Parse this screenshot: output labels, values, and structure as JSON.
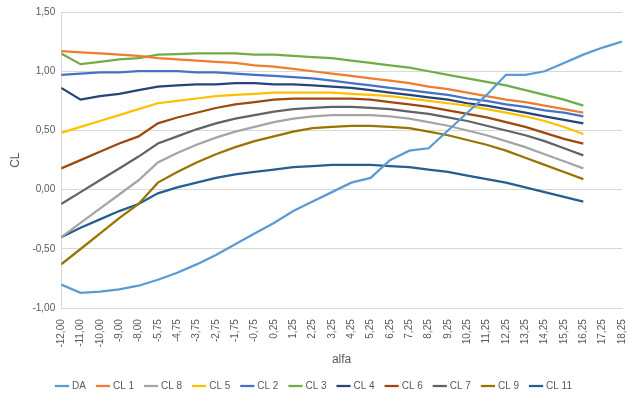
{
  "chart_data": {
    "type": "line",
    "x_label": "alfa",
    "y_label": "CL",
    "categories": [
      "-12,00",
      "-11,00",
      "-10,00",
      "-9,00",
      "-8,00",
      "-5,75",
      "-4,75",
      "-3,75",
      "-2,75",
      "-1,75",
      "-0,75",
      "0,25",
      "1,25",
      "2,25",
      "3,25",
      "4,25",
      "5,25",
      "6,25",
      "7,25",
      "8,25",
      "9,25",
      "10,25",
      "11,25",
      "12,25",
      "13,25",
      "14,25",
      "15,25",
      "16,25",
      "17,25",
      "18,25"
    ],
    "ylim": [
      -1,
      1.5
    ],
    "yticks": [
      {
        "value": -1,
        "label": "-1,00"
      },
      {
        "value": -0.5,
        "label": "-0,50"
      },
      {
        "value": 0,
        "label": "0,00"
      },
      {
        "value": 0.5,
        "label": "0,50"
      },
      {
        "value": 1,
        "label": "1,00"
      },
      {
        "value": 1.5,
        "label": "1,50"
      }
    ],
    "grid": true,
    "legend": "bottom",
    "series": [
      {
        "name": "DA",
        "color": "#5b9bd5",
        "values": [
          -0.8,
          -0.87,
          -0.86,
          -0.84,
          -0.81,
          -0.76,
          -0.7,
          -0.63,
          -0.55,
          -0.46,
          -0.37,
          -0.28,
          -0.18,
          -0.1,
          -0.02,
          0.06,
          0.1,
          0.25,
          0.33,
          0.35,
          0.5,
          0.65,
          0.8,
          0.97,
          0.97,
          1.0,
          1.07,
          1.14,
          1.2,
          1.25
        ]
      },
      {
        "name": "CL 1",
        "color": "#ed7d31",
        "values": [
          1.17,
          1.16,
          1.15,
          1.14,
          1.13,
          1.11,
          1.1,
          1.09,
          1.08,
          1.07,
          1.05,
          1.04,
          1.02,
          1.0,
          0.98,
          0.96,
          0.94,
          0.92,
          0.9,
          0.87,
          0.85,
          0.82,
          0.79,
          0.76,
          0.74,
          0.71,
          0.68,
          0.65,
          null,
          null
        ]
      },
      {
        "name": "CL 8",
        "color": "#a5a5a5",
        "values": [
          -0.4,
          -0.28,
          -0.16,
          -0.04,
          0.08,
          0.23,
          0.31,
          0.38,
          0.44,
          0.49,
          0.53,
          0.57,
          0.6,
          0.62,
          0.63,
          0.63,
          0.63,
          0.62,
          0.6,
          0.57,
          0.54,
          0.5,
          0.46,
          0.41,
          0.36,
          0.3,
          0.24,
          0.18,
          null,
          null
        ]
      },
      {
        "name": "CL 5",
        "color": "#ffc000",
        "values": [
          0.48,
          0.53,
          0.58,
          0.63,
          0.68,
          0.73,
          0.75,
          0.77,
          0.79,
          0.8,
          0.81,
          0.82,
          0.82,
          0.82,
          0.82,
          0.81,
          0.8,
          0.79,
          0.77,
          0.75,
          0.73,
          0.71,
          0.68,
          0.65,
          0.62,
          0.58,
          0.53,
          0.47,
          null,
          null
        ]
      },
      {
        "name": "CL 2",
        "color": "#4472c4",
        "values": [
          0.97,
          0.98,
          0.99,
          0.99,
          1.0,
          1.0,
          1.0,
          0.99,
          0.99,
          0.98,
          0.97,
          0.96,
          0.95,
          0.94,
          0.92,
          0.9,
          0.88,
          0.86,
          0.84,
          0.82,
          0.8,
          0.77,
          0.75,
          0.72,
          0.7,
          0.67,
          0.65,
          0.62,
          null,
          null
        ]
      },
      {
        "name": "CL 3",
        "color": "#70ad47",
        "values": [
          1.15,
          1.06,
          1.08,
          1.1,
          1.11,
          1.14,
          1.145,
          1.15,
          1.15,
          1.15,
          1.14,
          1.14,
          1.13,
          1.12,
          1.11,
          1.09,
          1.07,
          1.05,
          1.03,
          1.0,
          0.97,
          0.94,
          0.91,
          0.88,
          0.84,
          0.8,
          0.76,
          0.71,
          null,
          null
        ]
      },
      {
        "name": "CL 4",
        "color": "#264478",
        "values": [
          0.86,
          0.76,
          0.79,
          0.81,
          0.84,
          0.87,
          0.88,
          0.89,
          0.89,
          0.9,
          0.9,
          0.89,
          0.89,
          0.88,
          0.87,
          0.86,
          0.84,
          0.82,
          0.8,
          0.78,
          0.76,
          0.73,
          0.71,
          0.68,
          0.65,
          0.62,
          0.59,
          0.56,
          null,
          null
        ]
      },
      {
        "name": "CL 6",
        "color": "#9e480e",
        "values": [
          0.18,
          0.25,
          0.32,
          0.39,
          0.45,
          0.56,
          0.61,
          0.65,
          0.69,
          0.72,
          0.74,
          0.76,
          0.77,
          0.77,
          0.77,
          0.77,
          0.76,
          0.74,
          0.72,
          0.7,
          0.67,
          0.64,
          0.61,
          0.57,
          0.53,
          0.48,
          0.43,
          0.39,
          null,
          null
        ]
      },
      {
        "name": "CL 7",
        "color": "#636363",
        "values": [
          -0.12,
          -0.02,
          0.08,
          0.18,
          0.28,
          0.39,
          0.45,
          0.51,
          0.56,
          0.6,
          0.63,
          0.66,
          0.68,
          0.69,
          0.7,
          0.7,
          0.69,
          0.68,
          0.66,
          0.64,
          0.61,
          0.58,
          0.54,
          0.5,
          0.46,
          0.41,
          0.35,
          0.29,
          null,
          null
        ]
      },
      {
        "name": "CL 9",
        "color": "#997300",
        "values": [
          -0.63,
          -0.5,
          -0.37,
          -0.24,
          -0.12,
          0.06,
          0.15,
          0.23,
          0.3,
          0.36,
          0.41,
          0.45,
          0.49,
          0.52,
          0.53,
          0.54,
          0.54,
          0.53,
          0.52,
          0.49,
          0.46,
          0.42,
          0.38,
          0.33,
          0.27,
          0.21,
          0.15,
          0.09,
          null,
          null
        ]
      },
      {
        "name": "CL 11",
        "color": "#255e91",
        "values": [
          -0.4,
          -0.32,
          -0.25,
          -0.18,
          -0.12,
          -0.03,
          0.02,
          0.06,
          0.1,
          0.13,
          0.15,
          0.17,
          0.19,
          0.2,
          0.21,
          0.21,
          0.21,
          0.2,
          0.19,
          0.17,
          0.15,
          0.12,
          0.09,
          0.06,
          0.02,
          -0.02,
          -0.06,
          -0.1,
          null,
          null
        ]
      }
    ]
  }
}
